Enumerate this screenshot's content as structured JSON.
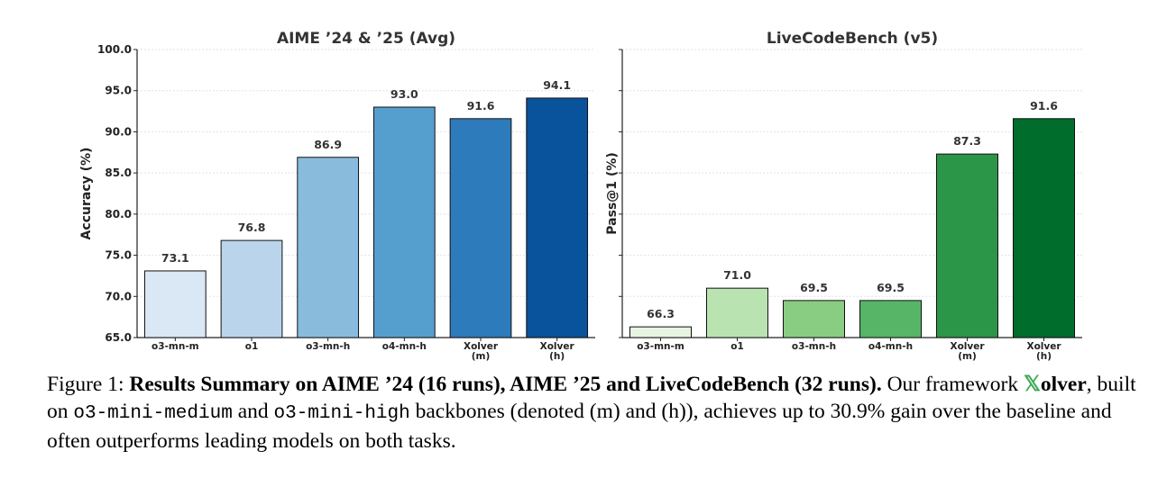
{
  "chart_data": [
    {
      "type": "bar",
      "title": "AIME ’24 & ’25 (Avg)",
      "ylabel": "Accuracy (%)",
      "xlabel": "",
      "ylim": [
        65,
        100
      ],
      "yticks": [
        "65.0",
        "70.0",
        "75.0",
        "80.0",
        "85.0",
        "90.0",
        "95.0",
        "100.0"
      ],
      "categories": [
        [
          "o3-mn-m"
        ],
        [
          "o1"
        ],
        [
          "o3-mn-h"
        ],
        [
          "o4-mn-h"
        ],
        [
          "Xolver",
          "(m)"
        ],
        [
          "Xolver",
          "(h)"
        ]
      ],
      "values": [
        73.1,
        76.8,
        86.9,
        93.0,
        91.6,
        94.1
      ],
      "labels": [
        "73.1",
        "76.8",
        "86.9",
        "93.0",
        "91.6",
        "94.1"
      ],
      "colors": [
        "#dae7f5",
        "#bad5eb",
        "#89bcdc",
        "#559fcf",
        "#2e7bbb",
        "#09529c"
      ],
      "grid": true
    },
    {
      "type": "bar",
      "title": "LiveCodeBench (v5)",
      "ylabel": "Pass@1 (%)",
      "xlabel": "",
      "ylim": [
        65,
        100
      ],
      "categories": [
        [
          "o3-mn-m"
        ],
        [
          "o1"
        ],
        [
          "o3-mn-h"
        ],
        [
          "o4-mn-h"
        ],
        [
          "Xolver",
          "(m)"
        ],
        [
          "Xolver",
          "(h)"
        ]
      ],
      "values": [
        66.3,
        71.0,
        69.5,
        69.5,
        87.3,
        91.6
      ],
      "labels": [
        "66.3",
        "71.0",
        "69.5",
        "69.5",
        "87.3",
        "91.6"
      ],
      "colors": [
        "#e6f4e1",
        "#bae3b2",
        "#88cd81",
        "#56b566",
        "#2b9548",
        "#006d2c"
      ],
      "grid": true
    }
  ],
  "caption": {
    "prefix": "Figure 1: ",
    "bold": "Results Summary on AIME ’24 (16 runs), AIME ’25 and LiveCodeBench (32 runs).",
    "part1": "Our framework ",
    "xmark": "𝕏",
    "xname": "olver",
    "part2": ", built on ",
    "code1": "o3-mini-medium",
    "part3": " and ",
    "code2": "o3-mini-high",
    "part4": " backbones (denoted (m) and (h)), achieves up to 30.9% gain over the baseline and often outperforms leading models on both tasks."
  }
}
